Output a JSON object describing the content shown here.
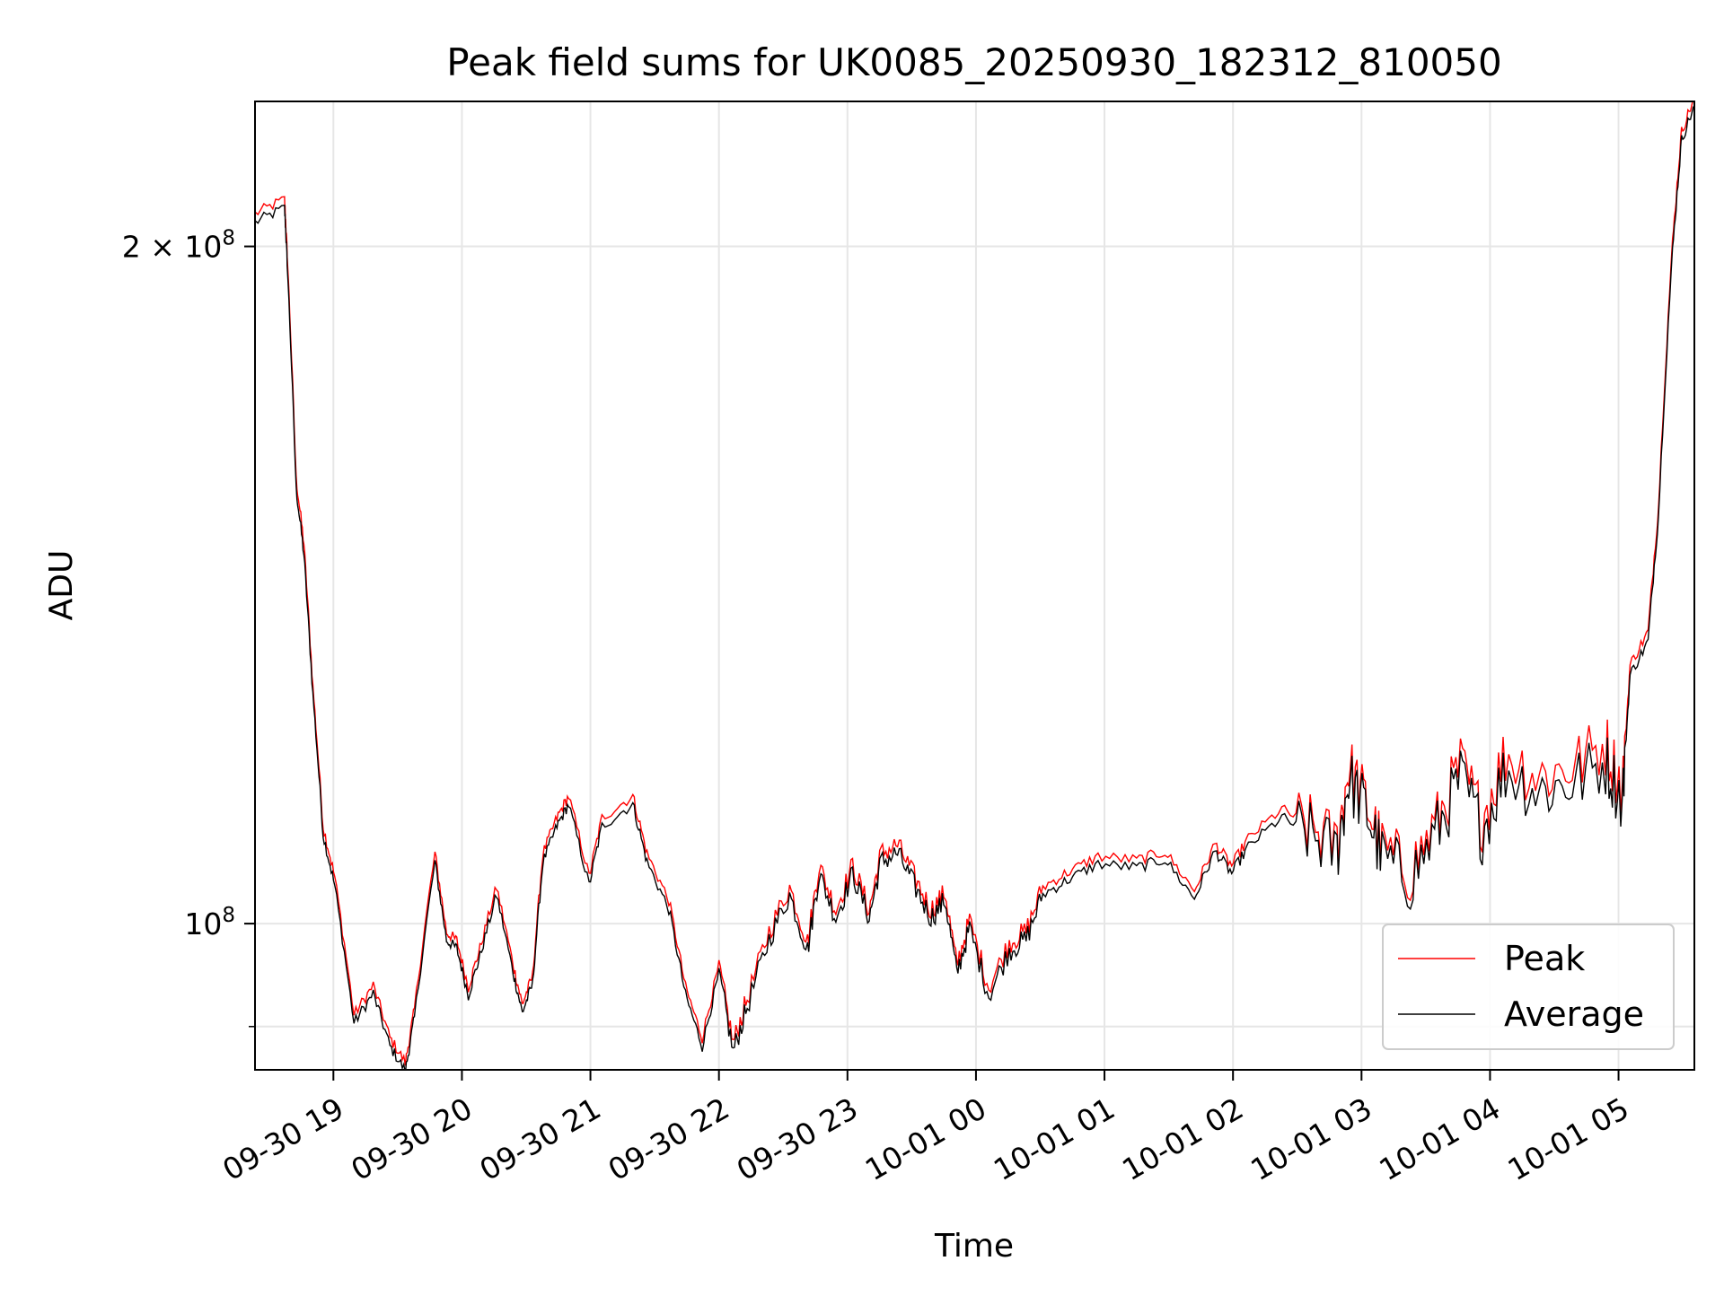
{
  "chart_data": {
    "type": "line",
    "title": "Peak field sums for UK0085_20250930_182312_810050",
    "xlabel": "Time",
    "ylabel": "ADU",
    "yscale": "log",
    "x_unit": "hours since 2025-09-30 00:00",
    "xlim": [
      18.39,
      29.59
    ],
    "ylim": [
      86100000,
      232000000
    ],
    "grid": true,
    "legend_position": "lower-right",
    "x_ticks": [
      {
        "value": 19,
        "label": "09-30 19"
      },
      {
        "value": 20,
        "label": "09-30 20"
      },
      {
        "value": 21,
        "label": "09-30 21"
      },
      {
        "value": 22,
        "label": "09-30 22"
      },
      {
        "value": 23,
        "label": "09-30 23"
      },
      {
        "value": 24,
        "label": "10-01 00"
      },
      {
        "value": 25,
        "label": "10-01 01"
      },
      {
        "value": 26,
        "label": "10-01 02"
      },
      {
        "value": 27,
        "label": "10-01 03"
      },
      {
        "value": 28,
        "label": "10-01 04"
      },
      {
        "value": 29,
        "label": "10-01 05"
      }
    ],
    "y_ticks": [
      {
        "value": 100000000,
        "base": "10",
        "exp": "8",
        "mult": ""
      },
      {
        "value": 200000000,
        "base": "10",
        "exp": "8",
        "mult": "2 × "
      }
    ],
    "y_minor_ticks": [
      90000000
    ],
    "x": [
      18.39,
      18.62,
      18.64,
      18.71,
      18.77,
      18.84,
      18.92,
      19.01,
      19.16,
      19.31,
      19.44,
      19.56,
      19.63,
      19.79,
      19.88,
      19.96,
      20.05,
      20.14,
      20.27,
      20.4,
      20.47,
      20.55,
      20.63,
      20.74,
      20.83,
      20.99,
      21.09,
      21.33,
      21.44,
      21.61,
      21.74,
      21.87,
      22.0,
      22.11,
      22.22,
      22.39,
      22.55,
      22.69,
      22.78,
      22.91,
      23.04,
      23.17,
      23.26,
      23.39,
      23.52,
      23.65,
      23.76,
      23.85,
      23.95,
      24.1,
      24.26,
      24.39,
      24.52,
      24.73,
      24.95,
      25.25,
      25.47,
      25.7,
      25.86,
      25.99,
      26.12,
      26.38,
      26.6,
      26.81,
      26.9,
      27.03,
      27.16,
      27.38,
      27.59,
      27.77,
      27.94,
      28.12,
      28.38,
      28.64,
      28.9,
      29.03,
      29.09,
      29.23,
      29.31,
      29.42,
      29.49,
      29.59
    ],
    "series": [
      {
        "name": "Peak",
        "color": "#ff0000",
        "values": [
          2.06,
          2.09,
          1.98,
          1.57,
          1.47,
          1.27,
          1.1,
          1.045,
          0.907,
          0.935,
          0.886,
          0.864,
          0.912,
          1.07,
          0.987,
          0.979,
          0.933,
          0.971,
          1.034,
          0.954,
          0.917,
          0.944,
          1.07,
          1.11,
          1.135,
          1.045,
          1.11,
          1.135,
          1.07,
          1.02,
          0.933,
          0.886,
          0.954,
          0.881,
          0.922,
          0.988,
          1.034,
          0.977,
          1.057,
          1.01,
          1.057,
          1.01,
          1.07,
          1.08,
          1.045,
          1.01,
          1.028,
          0.954,
          0.999,
          0.933,
          0.977,
          0.988,
          1.034,
          1.051,
          1.067,
          1.063,
          1.072,
          1.03,
          1.081,
          1.057,
          1.087,
          1.12,
          1.1,
          1.081,
          1.17,
          1.13,
          1.075,
          1.051,
          1.106,
          1.17,
          1.11,
          1.185,
          1.158,
          1.17,
          1.198,
          1.145,
          1.298,
          1.343,
          1.522,
          2.0,
          2.24,
          2.32
        ],
        "value_scale": 100000000
      },
      {
        "name": "Average",
        "color": "#000000",
        "values": [
          2.05,
          2.08,
          1.97,
          1.56,
          1.46,
          1.265,
          1.095,
          1.04,
          0.903,
          0.931,
          0.882,
          0.86,
          0.908,
          1.065,
          0.983,
          0.975,
          0.929,
          0.967,
          1.03,
          0.95,
          0.913,
          0.94,
          1.065,
          1.105,
          1.13,
          1.04,
          1.105,
          1.13,
          1.065,
          1.015,
          0.929,
          0.882,
          0.95,
          0.877,
          0.918,
          0.984,
          1.03,
          0.973,
          1.052,
          1.006,
          1.052,
          1.006,
          1.065,
          1.075,
          1.04,
          1.006,
          1.024,
          0.95,
          0.995,
          0.929,
          0.973,
          0.984,
          1.03,
          1.047,
          1.063,
          1.059,
          1.068,
          1.026,
          1.077,
          1.053,
          1.082,
          1.115,
          1.095,
          1.076,
          1.16,
          1.125,
          1.07,
          1.046,
          1.1,
          1.16,
          1.1,
          1.17,
          1.145,
          1.155,
          1.18,
          1.135,
          1.29,
          1.335,
          1.515,
          1.99,
          2.23,
          2.31
        ],
        "value_scale": 100000000
      }
    ]
  }
}
